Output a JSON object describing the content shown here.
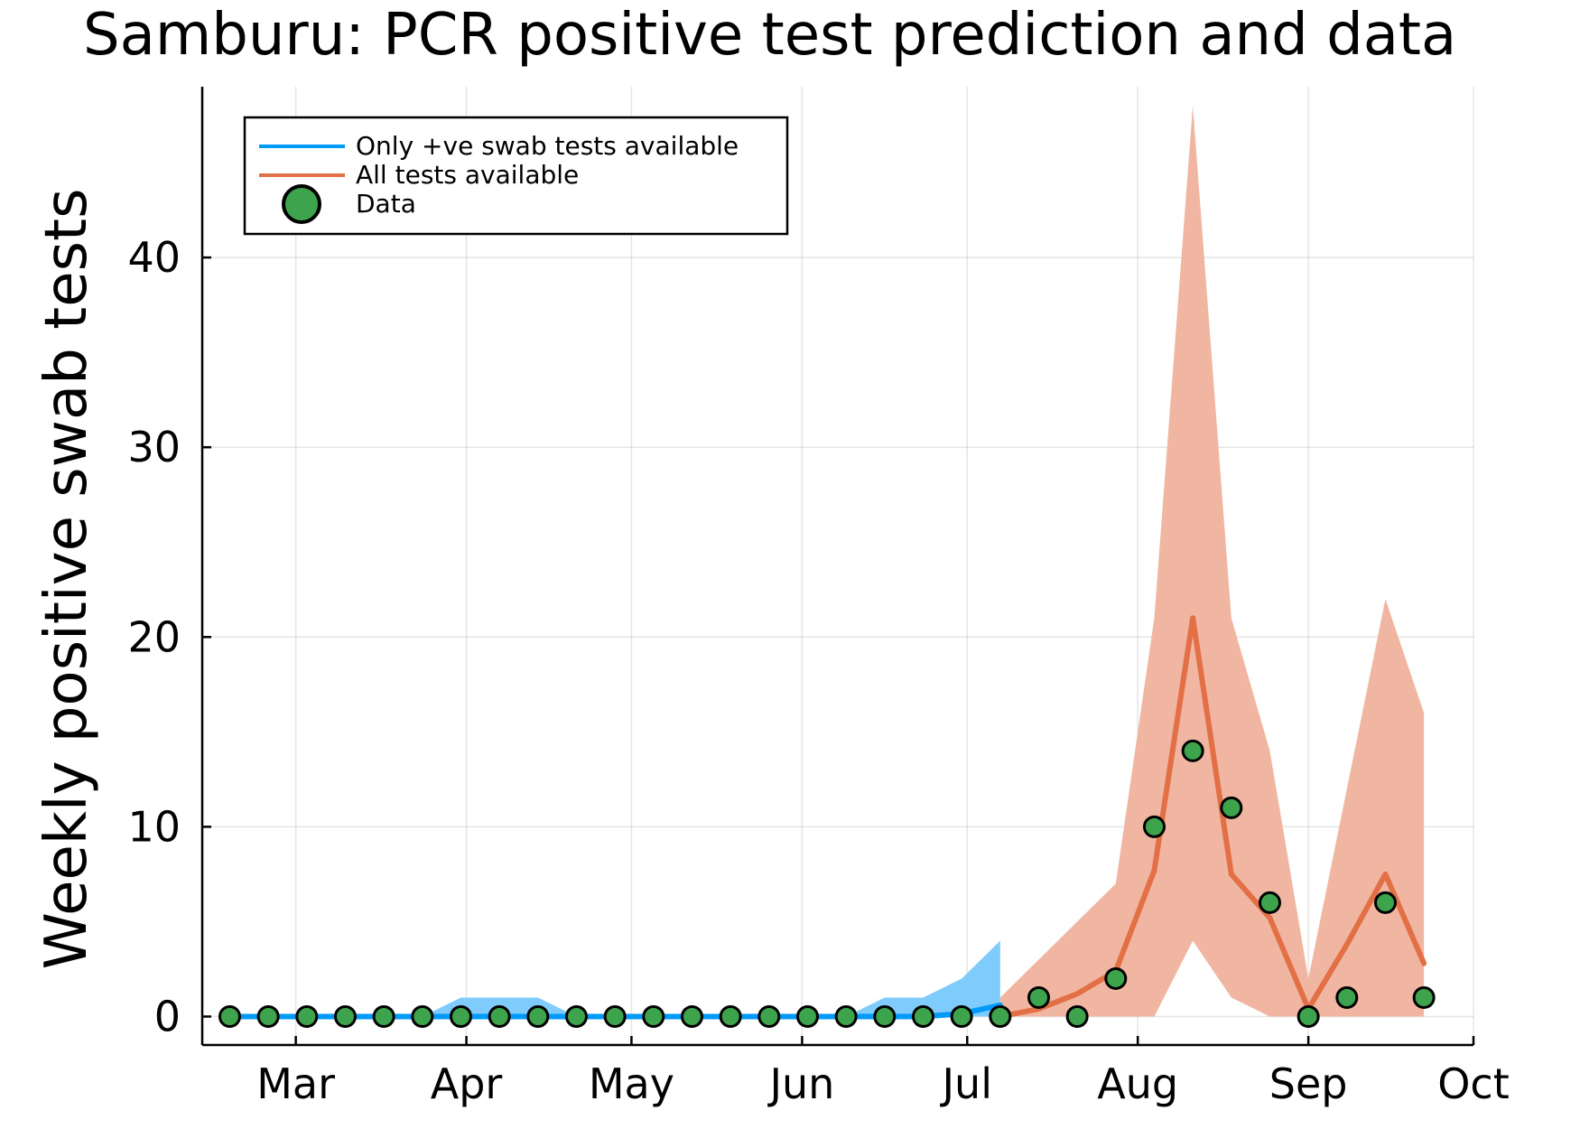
{
  "chart_data": {
    "type": "line",
    "title": "Samburu: PCR positive test prediction and data",
    "ylabel": "Weekly positive swab tests",
    "xlabel": "",
    "ylim": [
      -1.5,
      49
    ],
    "xlim": [
      "2021-02-12",
      "2021-10-01"
    ],
    "grid": true,
    "legend_position": "top-left",
    "x_ticks": [
      {
        "date": "2021-03-01",
        "label": "Mar"
      },
      {
        "date": "2021-04-01",
        "label": "Apr"
      },
      {
        "date": "2021-05-01",
        "label": "May"
      },
      {
        "date": "2021-06-01",
        "label": "Jun"
      },
      {
        "date": "2021-07-01",
        "label": "Jul"
      },
      {
        "date": "2021-08-01",
        "label": "Aug"
      },
      {
        "date": "2021-09-01",
        "label": "Sep"
      },
      {
        "date": "2021-10-01",
        "label": "Oct"
      }
    ],
    "y_ticks": [
      0,
      10,
      20,
      30,
      40
    ],
    "legend": [
      {
        "label": "Only +ve swab tests available",
        "kind": "line",
        "color": "#009af9"
      },
      {
        "label": "All tests available",
        "kind": "line",
        "color": "#e26f46"
      },
      {
        "label": "Data",
        "kind": "marker",
        "color": "#3da44d"
      }
    ],
    "series": [
      {
        "name": "Only +ve swab tests available",
        "color": "#009af9",
        "band_color": "#7fccfc",
        "x": [
          "2021-02-17",
          "2021-02-24",
          "2021-03-03",
          "2021-03-10",
          "2021-03-17",
          "2021-03-24",
          "2021-03-31",
          "2021-04-07",
          "2021-04-14",
          "2021-04-21",
          "2021-04-28",
          "2021-05-05",
          "2021-05-12",
          "2021-05-19",
          "2021-05-26",
          "2021-06-02",
          "2021-06-09",
          "2021-06-16",
          "2021-06-23",
          "2021-06-30",
          "2021-07-07"
        ],
        "mean": [
          0,
          0,
          0,
          0,
          0,
          0,
          0,
          0,
          0,
          0,
          0,
          0,
          0,
          0,
          0,
          0,
          0,
          0,
          0,
          0.15,
          0.6
        ],
        "lower": [
          0,
          0,
          0,
          0,
          0,
          0,
          0,
          0,
          0,
          0,
          0,
          0,
          0,
          0,
          0,
          0,
          0,
          0,
          0,
          0,
          0
        ],
        "upper": [
          0,
          0,
          0,
          0,
          0,
          0,
          1,
          1,
          1,
          0,
          0,
          0,
          0,
          0,
          0,
          0,
          0,
          1,
          1,
          2,
          4
        ]
      },
      {
        "name": "All tests available",
        "color": "#e26f46",
        "band_color": "#f0b6a1",
        "x": [
          "2021-07-07",
          "2021-07-14",
          "2021-07-21",
          "2021-07-28",
          "2021-08-04",
          "2021-08-11",
          "2021-08-18",
          "2021-08-25",
          "2021-09-01",
          "2021-09-08",
          "2021-09-15",
          "2021-09-22"
        ],
        "mean": [
          0,
          0.4,
          1.2,
          2.4,
          7.7,
          21,
          7.5,
          5.2,
          0.4,
          3.8,
          7.5,
          2.8
        ],
        "lower": [
          0,
          0,
          0,
          0,
          0,
          4,
          1,
          0,
          0,
          0,
          0,
          0
        ],
        "upper": [
          1,
          3,
          5,
          7,
          21,
          48,
          21,
          14,
          2,
          12,
          22,
          16
        ]
      }
    ],
    "data_points": {
      "name": "Data",
      "color": "#3da44d",
      "x": [
        "2021-02-17",
        "2021-02-24",
        "2021-03-03",
        "2021-03-10",
        "2021-03-17",
        "2021-03-24",
        "2021-03-31",
        "2021-04-07",
        "2021-04-14",
        "2021-04-21",
        "2021-04-28",
        "2021-05-05",
        "2021-05-12",
        "2021-05-19",
        "2021-05-26",
        "2021-06-02",
        "2021-06-09",
        "2021-06-16",
        "2021-06-23",
        "2021-06-30",
        "2021-07-07",
        "2021-07-14",
        "2021-07-21",
        "2021-07-28",
        "2021-08-04",
        "2021-08-11",
        "2021-08-18",
        "2021-08-25",
        "2021-09-01",
        "2021-09-08",
        "2021-09-15",
        "2021-09-22"
      ],
      "y": [
        0,
        0,
        0,
        0,
        0,
        0,
        0,
        0,
        0,
        0,
        0,
        0,
        0,
        0,
        0,
        0,
        0,
        0,
        0,
        0,
        0,
        1,
        0,
        2,
        10,
        14,
        11,
        6,
        0,
        1,
        6,
        1
      ]
    }
  }
}
